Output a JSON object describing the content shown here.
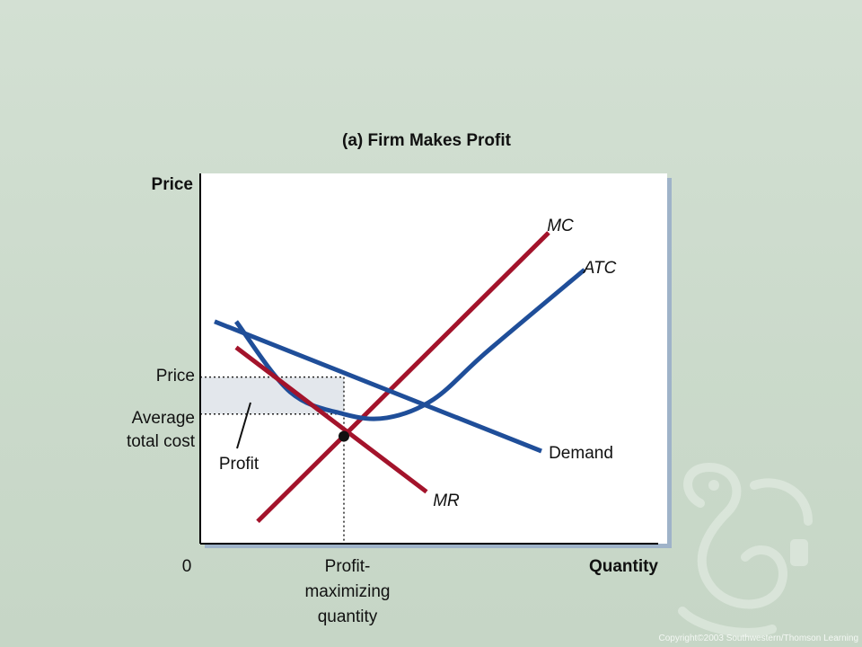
{
  "chart_data": {
    "type": "line",
    "title": "(a) Firm Makes Profit",
    "ylabel": "Price",
    "xlabel": "Quantity",
    "origin_label": "0",
    "y_markers": [
      {
        "label": "Price",
        "value": 4.5
      },
      {
        "label": "Average\ntotal cost",
        "value": 3.5
      }
    ],
    "x_markers": [
      {
        "label": "Profit-\nmaximizing\nquantity",
        "value": 4.0
      }
    ],
    "xlim": [
      0,
      13
    ],
    "ylim": [
      0,
      10
    ],
    "series": [
      {
        "name": "MC",
        "color": "#a3132b",
        "style": "normal",
        "points": [
          [
            1.6,
            0.6
          ],
          [
            9.7,
            8.4
          ]
        ]
      },
      {
        "name": "ATC",
        "color": "#1f4e99",
        "style": "curve",
        "points": [
          [
            1.0,
            6.0
          ],
          [
            2.5,
            4.1
          ],
          [
            4.0,
            3.5
          ],
          [
            5.2,
            3.4
          ],
          [
            6.5,
            3.9
          ],
          [
            8.0,
            5.2
          ],
          [
            10.7,
            7.4
          ]
        ]
      },
      {
        "name": "Demand",
        "color": "#1f4e99",
        "style": "normal",
        "points": [
          [
            0.4,
            6.0
          ],
          [
            9.5,
            2.5
          ]
        ]
      },
      {
        "name": "MR",
        "color": "#a3132b",
        "style": "italic",
        "points": [
          [
            1.0,
            5.3
          ],
          [
            6.3,
            1.4
          ]
        ]
      }
    ],
    "label_texts": {
      "mc": "MC",
      "atc": "ATC",
      "demand": "Demand",
      "mr": "MR",
      "profit": "Profit"
    },
    "shaded_region": {
      "name": "Profit",
      "x": [
        0,
        4.0
      ],
      "y": [
        3.5,
        4.5
      ]
    },
    "highlight_point": {
      "x": 4.0,
      "y": 2.9
    },
    "grid": false
  },
  "copyright": "Copyright©2003  Southwestern/Thomson Learning"
}
